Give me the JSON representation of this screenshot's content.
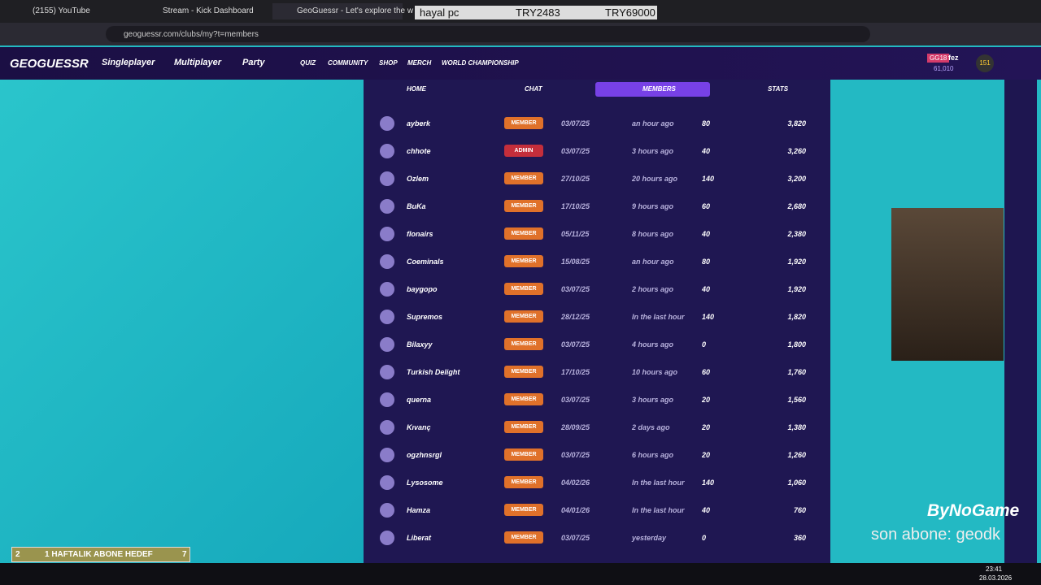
{
  "browser": {
    "tabs": [
      "(2155) YouTube",
      "Stream - Kick Dashboard",
      "GeoGuessr - Let's explore the w"
    ],
    "url": "geoguessr.com/clubs/my?t=members"
  },
  "overlay": {
    "label": "hayal pc",
    "amount1": "TRY2483",
    "amount2": "TRY69000"
  },
  "nav": {
    "logo": "GEOGUESSR",
    "main": [
      "Singleplayer",
      "Multiplayer",
      "Party"
    ],
    "small": [
      "QUIZ",
      "COMMUNITY",
      "SHOP",
      "MERCH",
      "WORLD CHAMPIONSHIP"
    ],
    "user": "fez",
    "badge": "GG18",
    "coins": "61,010",
    "level": "151"
  },
  "club_tabs": [
    "HOME",
    "CHAT",
    "MEMBERS",
    "STATS"
  ],
  "members": [
    [
      "ayberk",
      "MEMBER",
      "03/07/25",
      "an hour ago",
      "80",
      "3,820"
    ],
    [
      "chhote",
      "ADMIN",
      "03/07/25",
      "3 hours ago",
      "40",
      "3,260"
    ],
    [
      "Ozlem",
      "MEMBER",
      "27/10/25",
      "20 hours ago",
      "140",
      "3,200"
    ],
    [
      "BuKa",
      "MEMBER",
      "17/10/25",
      "9 hours ago",
      "60",
      "2,680"
    ],
    [
      "flonairs",
      "MEMBER",
      "05/11/25",
      "8 hours ago",
      "40",
      "2,380"
    ],
    [
      "Coeminals",
      "MEMBER",
      "15/08/25",
      "an hour ago",
      "80",
      "1,920"
    ],
    [
      "baygopo",
      "MEMBER",
      "03/07/25",
      "2 hours ago",
      "40",
      "1,920"
    ],
    [
      "Supremos",
      "MEMBER",
      "28/12/25",
      "In the last hour",
      "140",
      "1,820"
    ],
    [
      "Bilaxyy",
      "MEMBER",
      "03/07/25",
      "4 hours ago",
      "0",
      "1,800"
    ],
    [
      "Turkish Delight",
      "MEMBER",
      "17/10/25",
      "10 hours ago",
      "60",
      "1,760"
    ],
    [
      "querna",
      "MEMBER",
      "03/07/25",
      "3 hours ago",
      "20",
      "1,560"
    ],
    [
      "Kıvanç",
      "MEMBER",
      "28/09/25",
      "2 days ago",
      "20",
      "1,380"
    ],
    [
      "ogzhnsrgl",
      "MEMBER",
      "03/07/25",
      "6 hours ago",
      "20",
      "1,260"
    ],
    [
      "Lysosome",
      "MEMBER",
      "04/02/26",
      "In the last hour",
      "140",
      "1,060"
    ],
    [
      "Hamza",
      "MEMBER",
      "04/01/26",
      "In the last hour",
      "40",
      "760"
    ],
    [
      "Liberat",
      "MEMBER",
      "03/07/25",
      "yesterday",
      "0",
      "360"
    ]
  ],
  "stream": {
    "brand": "ByNoGame",
    "last_sub": "son abone: geodk",
    "goal_current": "2",
    "goal_label": "1 HAFTALIK ABONE HEDEF",
    "goal_target": "7"
  },
  "taskbar": {
    "time": "23:41",
    "date": "28.03.2026"
  }
}
